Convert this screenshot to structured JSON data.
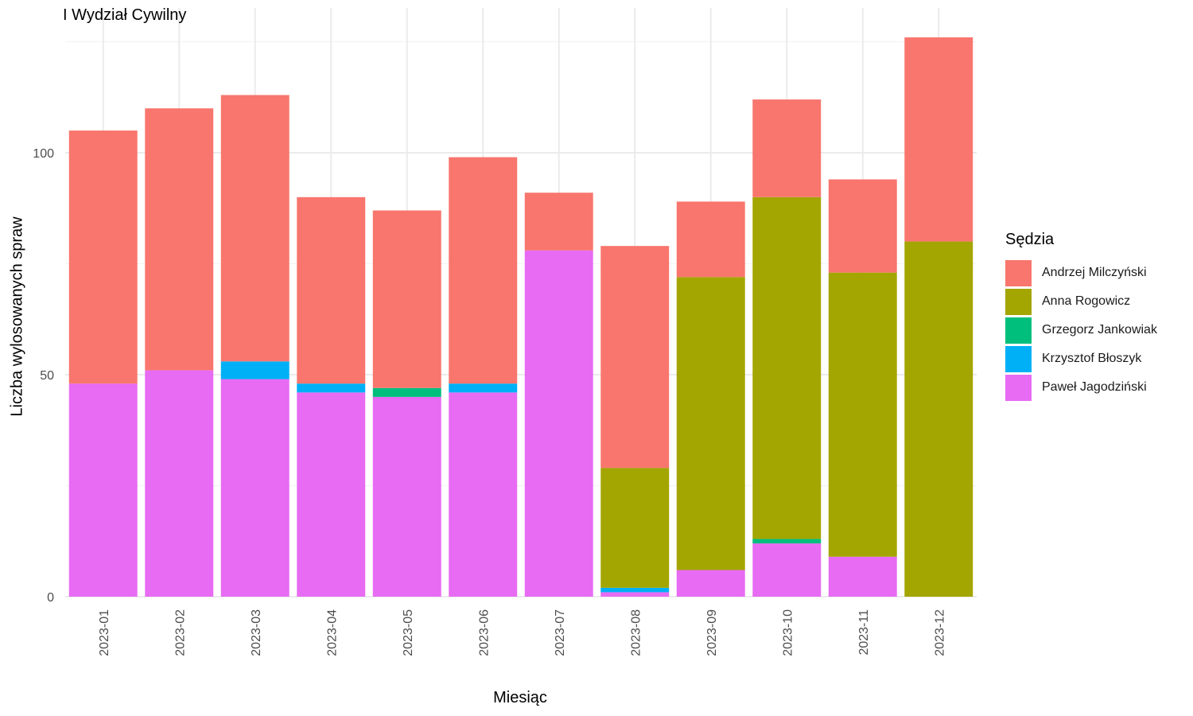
{
  "title": "I Wydział Cywilny",
  "chart_data": {
    "type": "bar",
    "stacked": true,
    "title": "I Wydział Cywilny",
    "xlabel": "Miesiąc",
    "ylabel": "Liczba wylosowanych spraw",
    "ylim": [
      0,
      127
    ],
    "yticks": [
      0,
      50,
      100
    ],
    "grid": true,
    "legend_title": "Sędzia",
    "legend_position": "right",
    "categories": [
      "2023-01",
      "2023-02",
      "2023-03",
      "2023-04",
      "2023-05",
      "2023-06",
      "2023-07",
      "2023-08",
      "2023-09",
      "2023-10",
      "2023-11",
      "2023-12"
    ],
    "series": [
      {
        "name": "Paweł Jagodziński",
        "color": "#E76BF3",
        "values": [
          48,
          51,
          49,
          46,
          45,
          46,
          78,
          1,
          6,
          12,
          9,
          0
        ]
      },
      {
        "name": "Krzysztof Błoszyk",
        "color": "#00B0F6",
        "values": [
          0,
          0,
          4,
          2,
          0,
          2,
          0,
          1,
          0,
          0,
          0,
          0
        ]
      },
      {
        "name": "Grzegorz Jankowiak",
        "color": "#00BF7D",
        "values": [
          0,
          0,
          0,
          0,
          2,
          0,
          0,
          0,
          0,
          1,
          0,
          0
        ]
      },
      {
        "name": "Anna Rogowicz",
        "color": "#A3A500",
        "values": [
          0,
          0,
          0,
          0,
          0,
          0,
          0,
          27,
          66,
          77,
          64,
          80
        ]
      },
      {
        "name": "Andrzej Milczyński",
        "color": "#F8766D",
        "values": [
          57,
          59,
          60,
          42,
          40,
          51,
          13,
          50,
          17,
          22,
          21,
          46
        ]
      }
    ],
    "legend_order": [
      "Andrzej Milczyński",
      "Anna Rogowicz",
      "Grzegorz Jankowiak",
      "Krzysztof Błoszyk",
      "Paweł Jagodziński"
    ]
  }
}
